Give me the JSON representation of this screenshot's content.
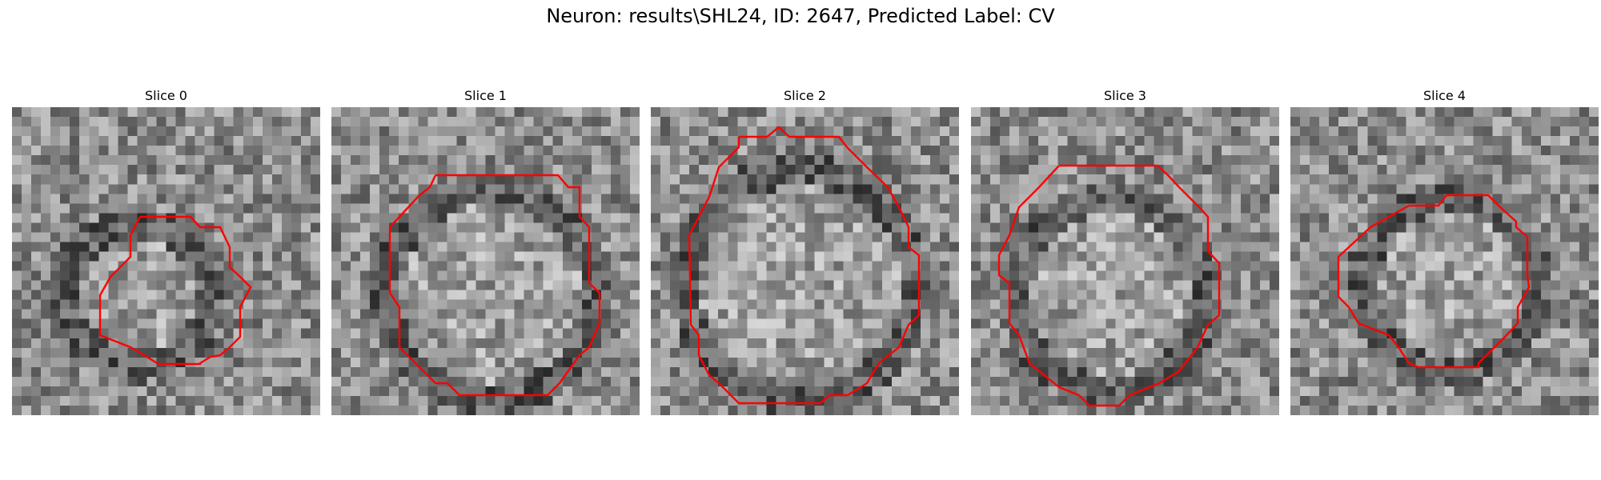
{
  "figure": {
    "title": "Neuron: results\\SHL24, ID: 2647, Predicted Label: CV"
  },
  "colors": {
    "contour": "#ff0000",
    "background": "#ffffff"
  },
  "panels": [
    {
      "title": "Slice 0"
    },
    {
      "title": "Slice 1"
    },
    {
      "title": "Slice 2"
    },
    {
      "title": "Slice 3"
    },
    {
      "title": "Slice 4"
    }
  ]
}
